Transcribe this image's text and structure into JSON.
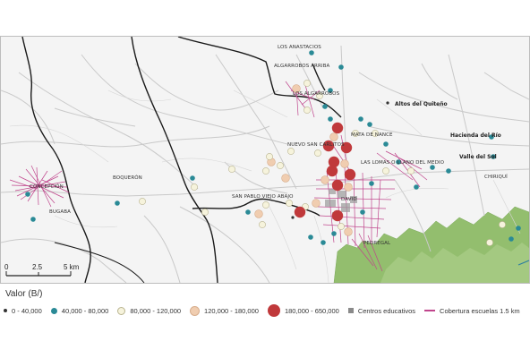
{
  "map": {
    "places": [
      {
        "id": "los-anastacios",
        "label": "LOS ANASTACIOS"
      },
      {
        "id": "algarrobos-arriba",
        "label": "ALGARROBOS ARRIBA"
      },
      {
        "id": "los-algarrobos",
        "label": "LOS ALGARROBOS"
      },
      {
        "id": "altos-del-quiteno",
        "label": "Altos del Quiteño"
      },
      {
        "id": "nuevo-san-carlitos",
        "label": "NUEVO SAN CARLITOS"
      },
      {
        "id": "mata-de-nance",
        "label": "MATA DE NANCE"
      },
      {
        "id": "las-lomas",
        "label": "LAS LOMAS O LLANO DEL MEDIO"
      },
      {
        "id": "hacienda-del-rio",
        "label": "Hacienda del Río"
      },
      {
        "id": "valle-del-sol",
        "label": "Valle del Sol"
      },
      {
        "id": "chiriqui",
        "label": "CHIRIQUÍ"
      },
      {
        "id": "boqueron",
        "label": "BOQUERÓN"
      },
      {
        "id": "concepcion",
        "label": "CONCEPCIÓN"
      },
      {
        "id": "bugaba",
        "label": "BUGABA"
      },
      {
        "id": "san-pablo",
        "label": "SAN PABLO VIEJO ABAJO"
      },
      {
        "id": "david",
        "label": "DAVID"
      },
      {
        "id": "pedregal",
        "label": "PEDREGAL"
      }
    ],
    "scale_bar": {
      "ticks": [
        "0",
        "2.5",
        "5 km"
      ]
    }
  },
  "legend": {
    "title": "Valor (B/)",
    "items": [
      {
        "label": "0 - 40,000",
        "color": "#333333",
        "kind": "circle"
      },
      {
        "label": "40,000 - 80,000",
        "color": "#2a8a96",
        "kind": "circle"
      },
      {
        "label": "80,000 - 120,000",
        "color": "#f6f3dc",
        "kind": "circle"
      },
      {
        "label": "120,000 - 180,000",
        "color": "#f0cdb0",
        "kind": "circle"
      },
      {
        "label": "180,000 - 650,000",
        "color": "#c0393b",
        "kind": "circle"
      },
      {
        "label": "Centros educativos",
        "color": "#8a8a8a",
        "kind": "square"
      },
      {
        "label": "Cobertura escuelas 1.5 km",
        "color": "#c0458c",
        "kind": "line"
      }
    ]
  }
}
